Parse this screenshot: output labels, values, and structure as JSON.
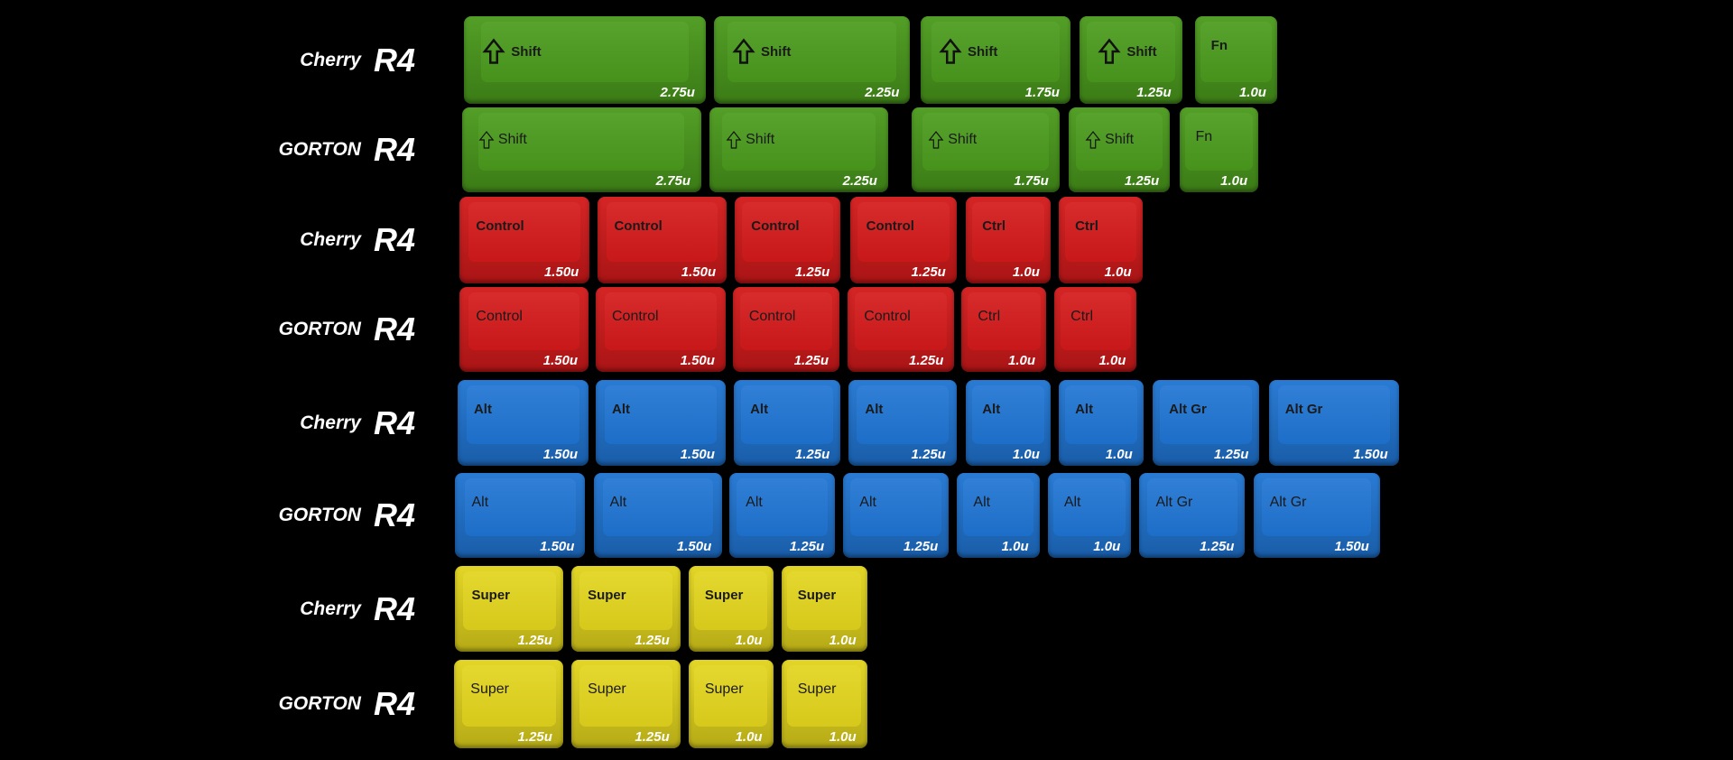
{
  "colors": {
    "green": "#4a9a1c",
    "red": "#d3191a",
    "blue": "#1f74d2",
    "yellow": "#e2d41c"
  },
  "rows": [
    {
      "brand": "Cherry",
      "profile": "R4",
      "style": "cherry",
      "color": "green",
      "keys": [
        {
          "legend": "Shift",
          "size": "2.75u",
          "icon": "shift-arrow-icon"
        },
        {
          "legend": "Shift",
          "size": "2.25u",
          "icon": "shift-arrow-icon"
        },
        {
          "legend": "Shift",
          "size": "1.75u",
          "icon": "shift-arrow-icon"
        },
        {
          "legend": "Shift",
          "size": "1.25u",
          "icon": "shift-arrow-icon"
        },
        {
          "legend": "Fn",
          "size": "1.0u"
        }
      ]
    },
    {
      "brand": "GORTON",
      "profile": "R4",
      "style": "gorton",
      "color": "green",
      "keys": [
        {
          "legend": "Shift",
          "size": "2.75u",
          "icon": "shift-arrow-icon"
        },
        {
          "legend": "Shift",
          "size": "2.25u",
          "icon": "shift-arrow-icon"
        },
        {
          "legend": "Shift",
          "size": "1.75u",
          "icon": "shift-arrow-icon"
        },
        {
          "legend": "Shift",
          "size": "1.25u",
          "icon": "shift-arrow-icon"
        },
        {
          "legend": "Fn",
          "size": "1.0u"
        }
      ]
    },
    {
      "brand": "Cherry",
      "profile": "R4",
      "style": "cherry",
      "color": "red",
      "keys": [
        {
          "legend": "Control",
          "size": "1.50u"
        },
        {
          "legend": "Control",
          "size": "1.50u"
        },
        {
          "legend": "Control",
          "size": "1.25u"
        },
        {
          "legend": "Control",
          "size": "1.25u"
        },
        {
          "legend": "Ctrl",
          "size": "1.0u"
        },
        {
          "legend": "Ctrl",
          "size": "1.0u"
        }
      ]
    },
    {
      "brand": "GORTON",
      "profile": "R4",
      "style": "gorton",
      "color": "red",
      "keys": [
        {
          "legend": "Control",
          "size": "1.50u"
        },
        {
          "legend": "Control",
          "size": "1.50u"
        },
        {
          "legend": "Control",
          "size": "1.25u"
        },
        {
          "legend": "Control",
          "size": "1.25u"
        },
        {
          "legend": "Ctrl",
          "size": "1.0u"
        },
        {
          "legend": "Ctrl",
          "size": "1.0u"
        }
      ]
    },
    {
      "brand": "Cherry",
      "profile": "R4",
      "style": "cherry",
      "color": "blue",
      "keys": [
        {
          "legend": "Alt",
          "size": "1.50u"
        },
        {
          "legend": "Alt",
          "size": "1.50u"
        },
        {
          "legend": "Alt",
          "size": "1.25u"
        },
        {
          "legend": "Alt",
          "size": "1.25u"
        },
        {
          "legend": "Alt",
          "size": "1.0u"
        },
        {
          "legend": "Alt",
          "size": "1.0u"
        },
        {
          "legend": "Alt Gr",
          "size": "1.25u"
        },
        {
          "legend": "Alt Gr",
          "size": "1.50u"
        }
      ]
    },
    {
      "brand": "GORTON",
      "profile": "R4",
      "style": "gorton",
      "color": "blue",
      "keys": [
        {
          "legend": "Alt",
          "size": "1.50u"
        },
        {
          "legend": "Alt",
          "size": "1.50u"
        },
        {
          "legend": "Alt",
          "size": "1.25u"
        },
        {
          "legend": "Alt",
          "size": "1.25u"
        },
        {
          "legend": "Alt",
          "size": "1.0u"
        },
        {
          "legend": "Alt",
          "size": "1.0u"
        },
        {
          "legend": "Alt Gr",
          "size": "1.25u"
        },
        {
          "legend": "Alt Gr",
          "size": "1.50u"
        }
      ]
    },
    {
      "brand": "Cherry",
      "profile": "R4",
      "style": "cherry",
      "color": "yellow",
      "keys": [
        {
          "legend": "Super",
          "size": "1.25u"
        },
        {
          "legend": "Super",
          "size": "1.25u"
        },
        {
          "legend": "Super",
          "size": "1.0u"
        },
        {
          "legend": "Super",
          "size": "1.0u"
        }
      ]
    },
    {
      "brand": "GORTON",
      "profile": "R4",
      "style": "gorton",
      "color": "yellow",
      "keys": [
        {
          "legend": "Super",
          "size": "1.25u"
        },
        {
          "legend": "Super",
          "size": "1.25u"
        },
        {
          "legend": "Super",
          "size": "1.0u"
        },
        {
          "legend": "Super",
          "size": "1.0u"
        }
      ]
    }
  ]
}
